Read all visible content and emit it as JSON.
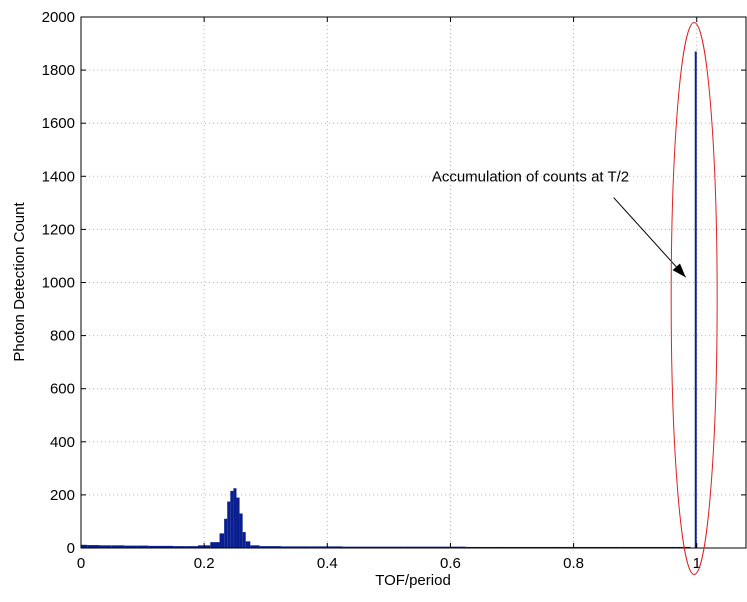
{
  "chart_data": {
    "type": "bar",
    "title": "",
    "xlabel": "TOF/period",
    "ylabel": "Photon Detection Count",
    "xlim": [
      0,
      1.08
    ],
    "ylim": [
      0,
      2000
    ],
    "xticks": [
      0,
      0.2,
      0.4,
      0.6,
      0.8,
      1
    ],
    "xtick_labels": [
      "0",
      "0.2",
      "0.4",
      "0.6",
      "0.8",
      "1"
    ],
    "yticks": [
      0,
      200,
      400,
      600,
      800,
      1000,
      1200,
      1400,
      1600,
      1800,
      2000
    ],
    "ytick_labels": [
      "0",
      "200",
      "400",
      "600",
      "800",
      "1000",
      "1200",
      "1400",
      "1600",
      "1800",
      "2000"
    ],
    "grid": true,
    "series": [
      {
        "color": "#0a1f8f",
        "x": [
          0.0,
          0.02,
          0.04,
          0.06,
          0.08,
          0.1,
          0.12,
          0.14,
          0.16,
          0.18,
          0.2,
          0.22,
          0.23,
          0.235,
          0.24,
          0.245,
          0.25,
          0.255,
          0.26,
          0.265,
          0.27,
          0.28,
          0.3,
          0.35,
          0.4,
          0.45,
          0.5,
          0.55,
          0.6,
          0.65,
          0.7,
          0.75,
          0.8,
          0.85,
          0.9,
          0.95,
          0.98,
          1.0
        ],
        "y": [
          12,
          11,
          10,
          10,
          9,
          9,
          8,
          8,
          7,
          7,
          10,
          22,
          55,
          110,
          175,
          215,
          225,
          190,
          130,
          60,
          25,
          10,
          7,
          6,
          6,
          5,
          5,
          5,
          5,
          4,
          4,
          4,
          4,
          4,
          4,
          4,
          4,
          1870
        ]
      }
    ],
    "annotations": [
      {
        "text": "Accumulation of counts at T/2",
        "points_to": [
          0.995,
          1020
        ],
        "text_anchor_at": [
          0.73,
          1380
        ],
        "highlight": "red ellipse around x = 1 spike",
        "arrow_color": "#000000",
        "ellipse_color": "#e02020"
      }
    ]
  }
}
